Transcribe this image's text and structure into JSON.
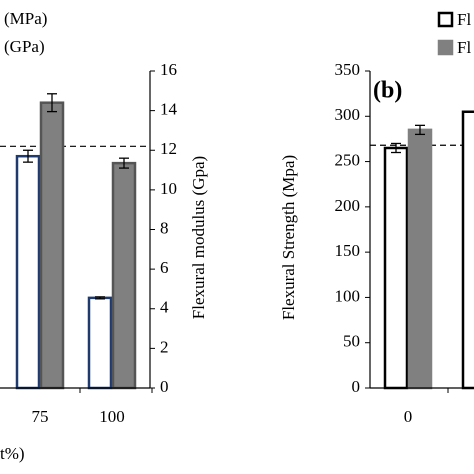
{
  "chart_data": [
    {
      "type": "bar",
      "x_label": "t%)",
      "y2_label": "Flexural modulus (Gpa)",
      "categories": [
        "75",
        "100"
      ],
      "series": [
        {
          "name": "(MPa)",
          "color": "#ffffff",
          "edge": "#1f3a6e",
          "axis": "y2",
          "values": [
            11.7,
            4.55
          ],
          "errors": [
            0.3,
            0.05
          ]
        },
        {
          "name": "(GPa)",
          "color": "#808080",
          "edge": "#555555",
          "axis": "y2",
          "values": [
            14.4,
            11.35
          ],
          "errors": [
            0.45,
            0.25
          ]
        }
      ],
      "y2lim": [
        0,
        16
      ],
      "y2ticks": [
        0,
        2,
        4,
        6,
        8,
        10,
        12,
        14,
        16
      ],
      "reference_line": 12.2
    },
    {
      "type": "bar",
      "title": "(b)",
      "y_label": "Flexural Strength (Mpa)",
      "categories": [
        "0",
        null
      ],
      "series": [
        {
          "name": "Fl",
          "color": "#ffffff",
          "edge": "#000000",
          "values": [
            265,
            305
          ],
          "errors": [
            5,
            null
          ]
        },
        {
          "name": "Fl",
          "color": "#808080",
          "edge": "#808080",
          "values": [
            285,
            null
          ],
          "errors": [
            5,
            null
          ]
        }
      ],
      "ylim": [
        0,
        350
      ],
      "yticks": [
        0,
        50,
        100,
        150,
        200,
        250,
        300,
        350
      ],
      "reference_line": 268
    }
  ]
}
